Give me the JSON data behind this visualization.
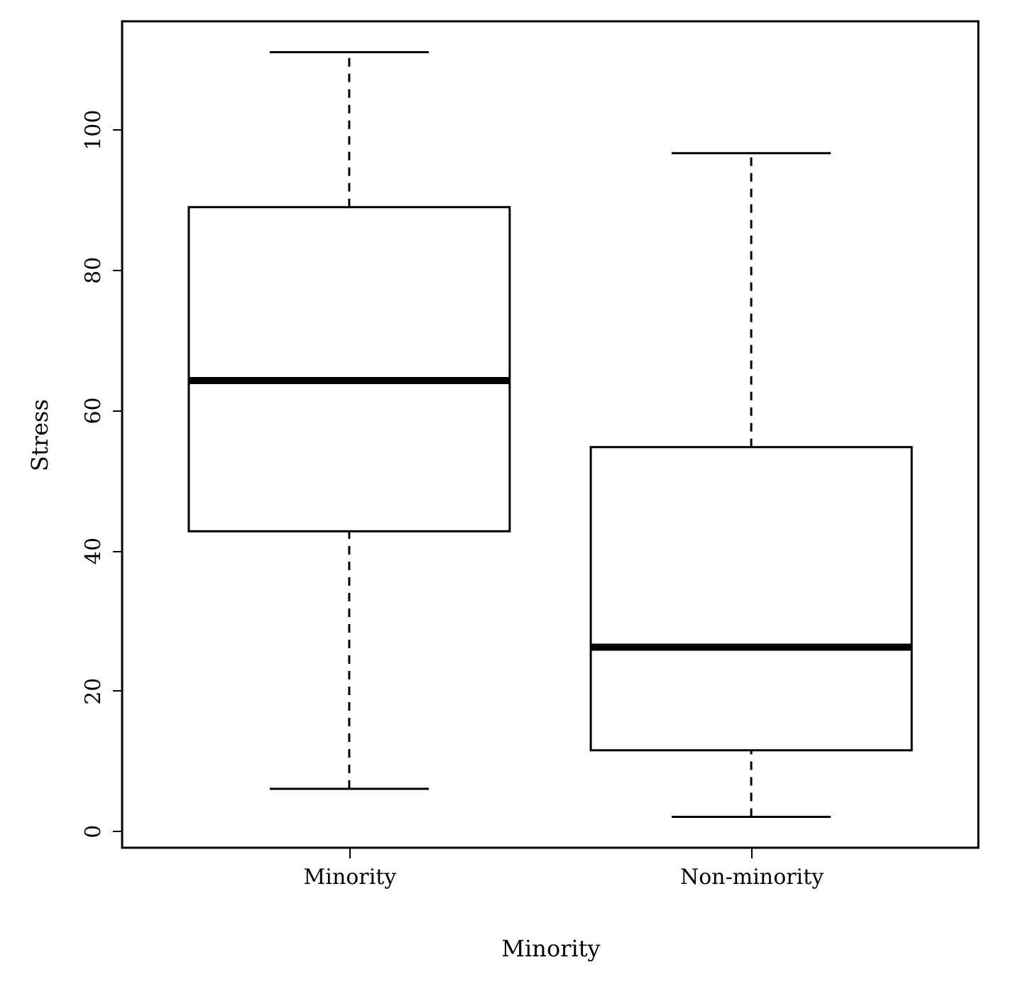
{
  "chart_data": {
    "type": "box",
    "xlabel": "Minority",
    "ylabel": "Stress",
    "categories": [
      "Minority",
      "Non-minority"
    ],
    "boxes": [
      {
        "low": 6,
        "q1": 42.7,
        "median": 64.2,
        "q3": 88.9,
        "high": 111
      },
      {
        "low": 2,
        "q1": 11.5,
        "median": 26.2,
        "q3": 54.7,
        "high": 96.6
      }
    ],
    "ylim": [
      -2.4,
      115.4
    ],
    "yticks": [
      0,
      20,
      40,
      60,
      80,
      100
    ],
    "grid": false
  }
}
